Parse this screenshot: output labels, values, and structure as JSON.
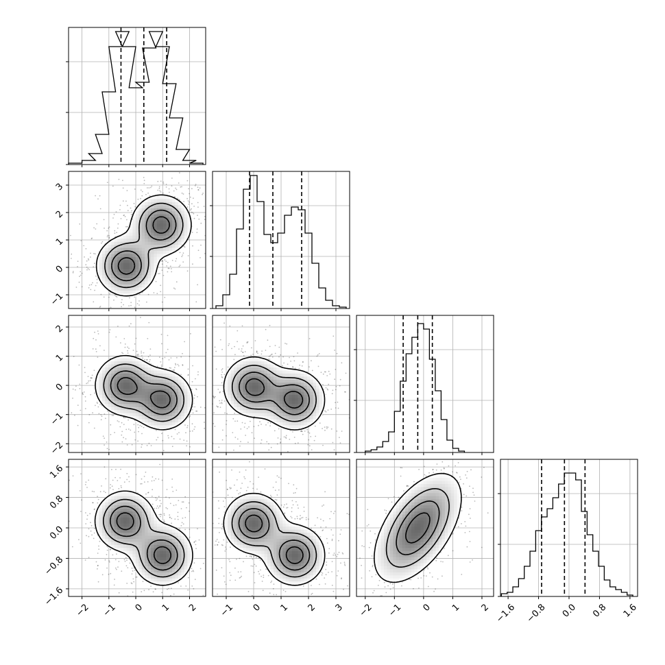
{
  "chart_data": {
    "type": "corner",
    "grid": true,
    "parameters": [
      {
        "range": [
          -2.5,
          2.6
        ],
        "ticks": [
          -2,
          -1,
          0,
          1,
          2
        ],
        "tick_labels": [
          "−2",
          "−1",
          "0",
          "1",
          "2"
        ],
        "quantiles": [
          -0.55,
          0.3,
          1.15
        ],
        "hist_x": [
          -2.25,
          -1.75,
          -1.5,
          -1.25,
          -1.0,
          -0.75,
          -0.5,
          -0.25,
          0.0,
          0.25,
          0.5,
          0.75,
          1.0,
          1.25,
          1.5,
          1.75,
          2.0,
          2.25
        ],
        "hist_density": [
          0.01,
          0.03,
          0.08,
          0.22,
          0.53,
          0.86,
          0.97,
          0.86,
          0.56,
          0.6,
          0.85,
          0.97,
          0.86,
          0.59,
          0.34,
          0.11,
          0.03,
          0.01
        ]
      },
      {
        "range": [
          -1.5,
          3.5
        ],
        "ticks": [
          -1,
          0,
          1,
          2,
          3
        ],
        "tick_labels": [
          "−1",
          "0",
          "1",
          "2",
          "3"
        ],
        "quantiles": [
          -0.15,
          0.7,
          1.75
        ],
        "hist_x": [
          -1.25,
          -1.0,
          -0.75,
          -0.5,
          -0.25,
          0.0,
          0.25,
          0.5,
          0.75,
          1.0,
          1.25,
          1.5,
          1.75,
          2.0,
          2.25,
          2.5,
          2.75,
          3.0,
          3.25
        ],
        "hist_density": [
          0.02,
          0.1,
          0.25,
          0.58,
          0.87,
          0.97,
          0.78,
          0.54,
          0.48,
          0.55,
          0.68,
          0.74,
          0.72,
          0.55,
          0.33,
          0.15,
          0.06,
          0.02,
          0.01
        ]
      },
      {
        "range": [
          -2.3,
          2.4
        ],
        "ticks": [
          -2,
          -1,
          0,
          1,
          2
        ],
        "tick_labels": [
          "−2",
          "−1",
          "0",
          "1",
          "2"
        ],
        "quantiles": [
          -0.7,
          -0.2,
          0.3
        ],
        "hist_x": [
          -1.9,
          -1.7,
          -1.5,
          -1.3,
          -1.1,
          -0.9,
          -0.7,
          -0.5,
          -0.3,
          -0.1,
          0.1,
          0.3,
          0.5,
          0.7,
          0.9,
          1.1,
          1.3
        ],
        "hist_density": [
          0.01,
          0.02,
          0.04,
          0.08,
          0.15,
          0.3,
          0.52,
          0.72,
          0.84,
          0.94,
          0.9,
          0.68,
          0.45,
          0.24,
          0.09,
          0.03,
          0.01
        ]
      },
      {
        "range": [
          -1.8,
          1.8
        ],
        "ticks": [
          -1.6,
          -0.8,
          0.0,
          0.8,
          1.6
        ],
        "tick_labels": [
          "−1.6",
          "−0.8",
          "0.0",
          "0.8",
          "1.6"
        ],
        "quantiles": [
          -0.72,
          -0.12,
          0.42
        ],
        "hist_x": [
          -1.7,
          -1.55,
          -1.4,
          -1.25,
          -1.1,
          -0.95,
          -0.8,
          -0.65,
          -0.5,
          -0.35,
          -0.2,
          -0.05,
          0.1,
          0.25,
          0.4,
          0.55,
          0.7,
          0.85,
          1.0,
          1.15,
          1.3,
          1.45,
          1.6
        ],
        "hist_density": [
          0.02,
          0.03,
          0.07,
          0.13,
          0.22,
          0.33,
          0.48,
          0.58,
          0.64,
          0.72,
          0.82,
          0.9,
          0.9,
          0.85,
          0.62,
          0.45,
          0.33,
          0.22,
          0.12,
          0.07,
          0.05,
          0.03,
          0.01
        ]
      }
    ],
    "pairs": [
      {
        "x": 0,
        "y": 1,
        "peaks": [
          [
            -0.35,
            0.05
          ],
          [
            0.95,
            1.55
          ]
        ]
      },
      {
        "x": 0,
        "y": 2,
        "peaks": [
          [
            -0.4,
            0.0
          ],
          [
            1.0,
            -0.5
          ]
        ]
      },
      {
        "x": 1,
        "y": 2,
        "peaks": [
          [
            0.0,
            -0.05
          ],
          [
            1.5,
            -0.5
          ]
        ]
      },
      {
        "x": 0,
        "y": 3,
        "peaks": [
          [
            -0.4,
            0.18
          ],
          [
            1.0,
            -0.72
          ]
        ]
      },
      {
        "x": 1,
        "y": 3,
        "peaks": [
          [
            0.0,
            0.12
          ],
          [
            1.5,
            -0.72
          ]
        ]
      },
      {
        "x": 2,
        "y": 3,
        "peaks": [
          [
            -0.2,
            0.0
          ]
        ]
      }
    ]
  }
}
